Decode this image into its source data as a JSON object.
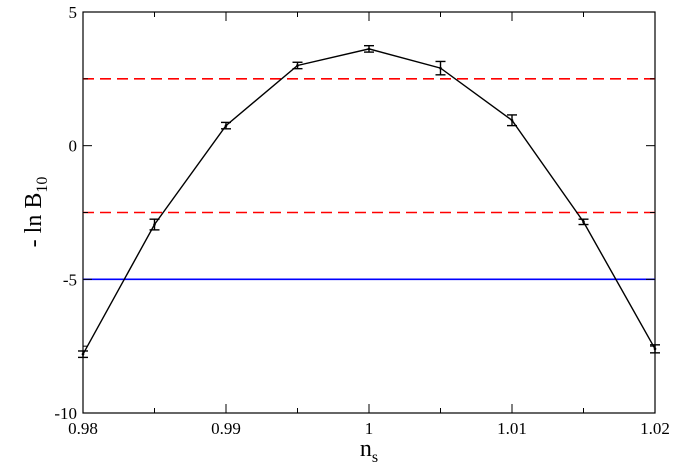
{
  "chart_data": {
    "type": "line",
    "title": "",
    "xlabel": "n",
    "xlabel_sub": "s",
    "ylabel": "- ln B",
    "ylabel_sub": "10",
    "xlim": [
      0.98,
      1.02
    ],
    "ylim": [
      -10,
      5
    ],
    "x_ticks": [
      0.98,
      0.99,
      1.0,
      1.01,
      1.02
    ],
    "x_tick_labels": [
      "0.98",
      "0.99",
      "1",
      "1.01",
      "1.02"
    ],
    "y_ticks": [
      -10,
      -5,
      0,
      5
    ],
    "y_tick_labels": [
      "-10",
      "-5",
      "0",
      "5"
    ],
    "grid": false,
    "series": [
      {
        "color": "#000000",
        "x": [
          0.98,
          0.985,
          0.99,
          0.995,
          1.0,
          1.005,
          1.01,
          1.015,
          1.02
        ],
        "y": [
          -7.8,
          -2.95,
          0.75,
          3.0,
          3.62,
          2.9,
          0.95,
          -2.85,
          -7.6
        ],
        "err": [
          0.12,
          0.2,
          0.12,
          0.12,
          0.12,
          0.25,
          0.2,
          0.1,
          0.15
        ]
      }
    ],
    "reference_lines": [
      {
        "y": 2.5,
        "color": "#ff0000",
        "style": "dashed"
      },
      {
        "y": -2.5,
        "color": "#ff0000",
        "style": "dashed"
      },
      {
        "y": -5,
        "color": "#0000ff",
        "style": "solid"
      }
    ]
  }
}
